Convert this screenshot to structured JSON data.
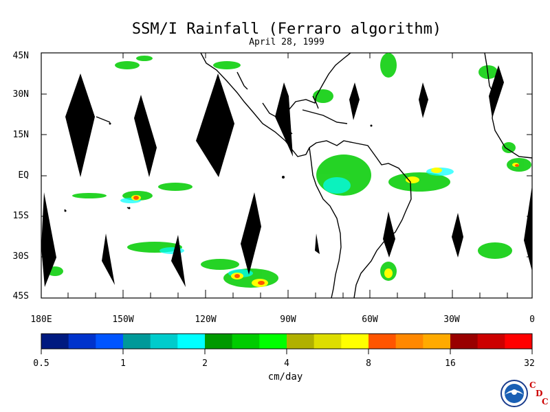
{
  "title": "SSM/I Rainfall (Ferraro algorithm)",
  "subtitle": "April 28, 1999",
  "lat_labels": [
    "45N",
    "30N",
    "15N",
    "EQ",
    "15S",
    "30S",
    "45S"
  ],
  "lon_labels": [
    "180E",
    "150W",
    "120W",
    "90W",
    "60W",
    "30W",
    "0"
  ],
  "colorbar": {
    "colors": [
      "#001a80",
      "#0033cc",
      "#0055ff",
      "#009999",
      "#00cccc",
      "#00ffff",
      "#009900",
      "#00cc00",
      "#00ff00",
      "#b0b000",
      "#dddd00",
      "#ffff00",
      "#ff5500",
      "#ff8800",
      "#ffaa00",
      "#990000",
      "#cc0000",
      "#ff0000"
    ],
    "tick_labels": [
      "0.5",
      "1",
      "2",
      "4",
      "8",
      "16",
      "32"
    ],
    "units": "cm/day"
  },
  "logo": {
    "letters": [
      "C",
      "D",
      "C"
    ]
  }
}
